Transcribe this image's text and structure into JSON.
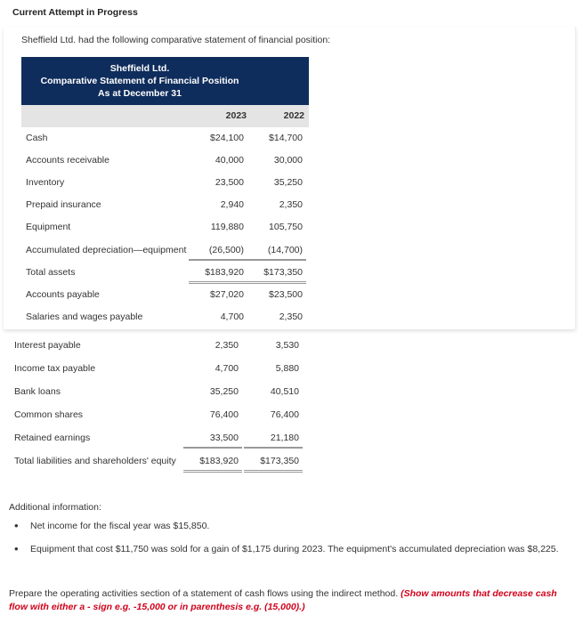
{
  "header": {
    "title": "Current Attempt in Progress"
  },
  "intro": "Sheffield Ltd. had the following comparative statement of financial position:",
  "statement": {
    "company": "Sheffield Ltd.",
    "title": "Comparative Statement of Financial Position",
    "date": "As at December 31",
    "years": [
      "2023",
      "2022"
    ],
    "upper_rows": [
      {
        "label": "Cash",
        "y2023": "$24,100",
        "y2022": "$14,700"
      },
      {
        "label": "Accounts receivable",
        "y2023": "40,000",
        "y2022": "30,000"
      },
      {
        "label": "Inventory",
        "y2023": "23,500",
        "y2022": "35,250"
      },
      {
        "label": "Prepaid insurance",
        "y2023": "2,940",
        "y2022": "2,350"
      },
      {
        "label": "Equipment",
        "y2023": "119,880",
        "y2022": "105,750"
      },
      {
        "label": "Accumulated depreciation—equipment",
        "y2023": "(26,500)",
        "y2022": "(14,700)"
      },
      {
        "label": "Total assets",
        "y2023": "$183,920",
        "y2022": "$173,350"
      },
      {
        "label": "Accounts payable",
        "y2023": "$27,020",
        "y2022": "$23,500"
      },
      {
        "label": "Salaries and wages payable",
        "y2023": "4,700",
        "y2022": "2,350"
      }
    ],
    "lower_rows": [
      {
        "label": "Interest payable",
        "y2023": "2,350",
        "y2022": "3,530"
      },
      {
        "label": "Income tax payable",
        "y2023": "4,700",
        "y2022": "5,880"
      },
      {
        "label": "Bank loans",
        "y2023": "35,250",
        "y2022": "40,510"
      },
      {
        "label": "Common shares",
        "y2023": "76,400",
        "y2022": "76,400"
      },
      {
        "label": "Retained earnings",
        "y2023": "33,500",
        "y2022": "21,180"
      },
      {
        "label": "Total liabilities and shareholders' equity",
        "y2023": "$183,920",
        "y2022": "$173,350"
      }
    ]
  },
  "additional": {
    "heading": "Additional information:",
    "items": [
      "Net income for the fiscal year was $15,850.",
      "Equipment that cost $11,750 was sold for a gain of $1,175 during 2023. The equipment's accumulated depreciation was $8,225."
    ]
  },
  "prompt": {
    "text": "Prepare the operating activities section of a statement of cash flows using the indirect method.",
    "hint": "(Show amounts that decrease cash flow with either a - sign e.g. -15,000 or in parenthesis e.g. (15,000).)"
  },
  "colors": {
    "header_bg": "#0f2d5c",
    "hint": "#d0021b"
  }
}
